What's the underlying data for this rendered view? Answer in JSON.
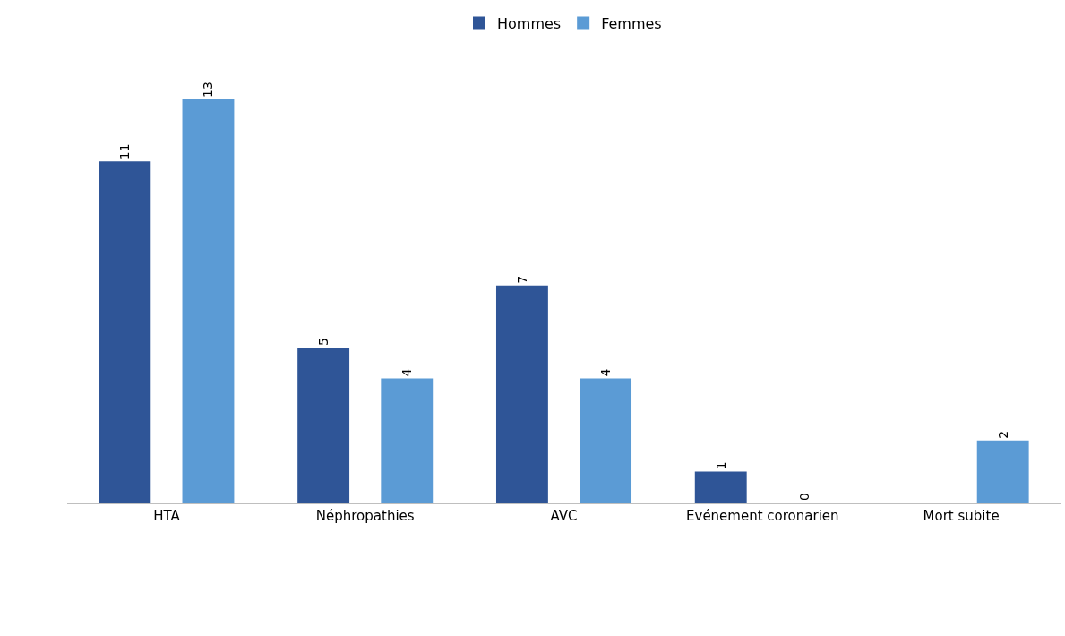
{
  "chart_data": {
    "type": "bar",
    "categories": [
      "HTA",
      "Néphropathies",
      "AVC",
      "Evénement coronarien",
      "Mort subite"
    ],
    "series": [
      {
        "name": "Hommes",
        "color": "#2f5597",
        "values": [
          11,
          5,
          7,
          1,
          null
        ]
      },
      {
        "name": "Femmes",
        "color": "#5b9bd5",
        "values": [
          13,
          4,
          4,
          0,
          2
        ]
      }
    ],
    "data_labels": true,
    "legend": "top"
  }
}
